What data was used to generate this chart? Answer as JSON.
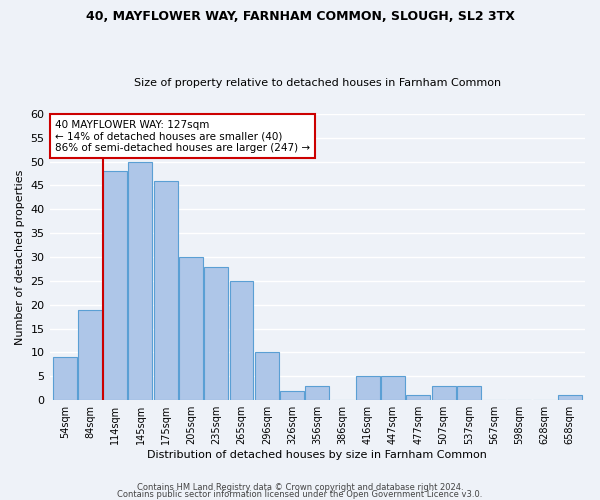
{
  "title1": "40, MAYFLOWER WAY, FARNHAM COMMON, SLOUGH, SL2 3TX",
  "title2": "Size of property relative to detached houses in Farnham Common",
  "xlabel": "Distribution of detached houses by size in Farnham Common",
  "ylabel": "Number of detached properties",
  "bar_labels": [
    "54sqm",
    "84sqm",
    "114sqm",
    "145sqm",
    "175sqm",
    "205sqm",
    "235sqm",
    "265sqm",
    "296sqm",
    "326sqm",
    "356sqm",
    "386sqm",
    "416sqm",
    "447sqm",
    "477sqm",
    "507sqm",
    "537sqm",
    "567sqm",
    "598sqm",
    "628sqm",
    "658sqm"
  ],
  "bar_values": [
    9,
    19,
    48,
    50,
    46,
    30,
    28,
    25,
    10,
    2,
    3,
    0,
    5,
    5,
    1,
    3,
    3,
    0,
    0,
    0,
    1
  ],
  "bar_color": "#aec6e8",
  "bar_edge_color": "#5a9fd4",
  "vline_x_index": 2,
  "vline_color": "#cc0000",
  "annotation_text": "40 MAYFLOWER WAY: 127sqm\n← 14% of detached houses are smaller (40)\n86% of semi-detached houses are larger (247) →",
  "annotation_box_color": "#cc0000",
  "ylim": [
    0,
    60
  ],
  "yticks": [
    0,
    5,
    10,
    15,
    20,
    25,
    30,
    35,
    40,
    45,
    50,
    55,
    60
  ],
  "footer1": "Contains HM Land Registry data © Crown copyright and database right 2024.",
  "footer2": "Contains public sector information licensed under the Open Government Licence v3.0.",
  "bg_color": "#eef2f8",
  "grid_color": "#ffffff"
}
